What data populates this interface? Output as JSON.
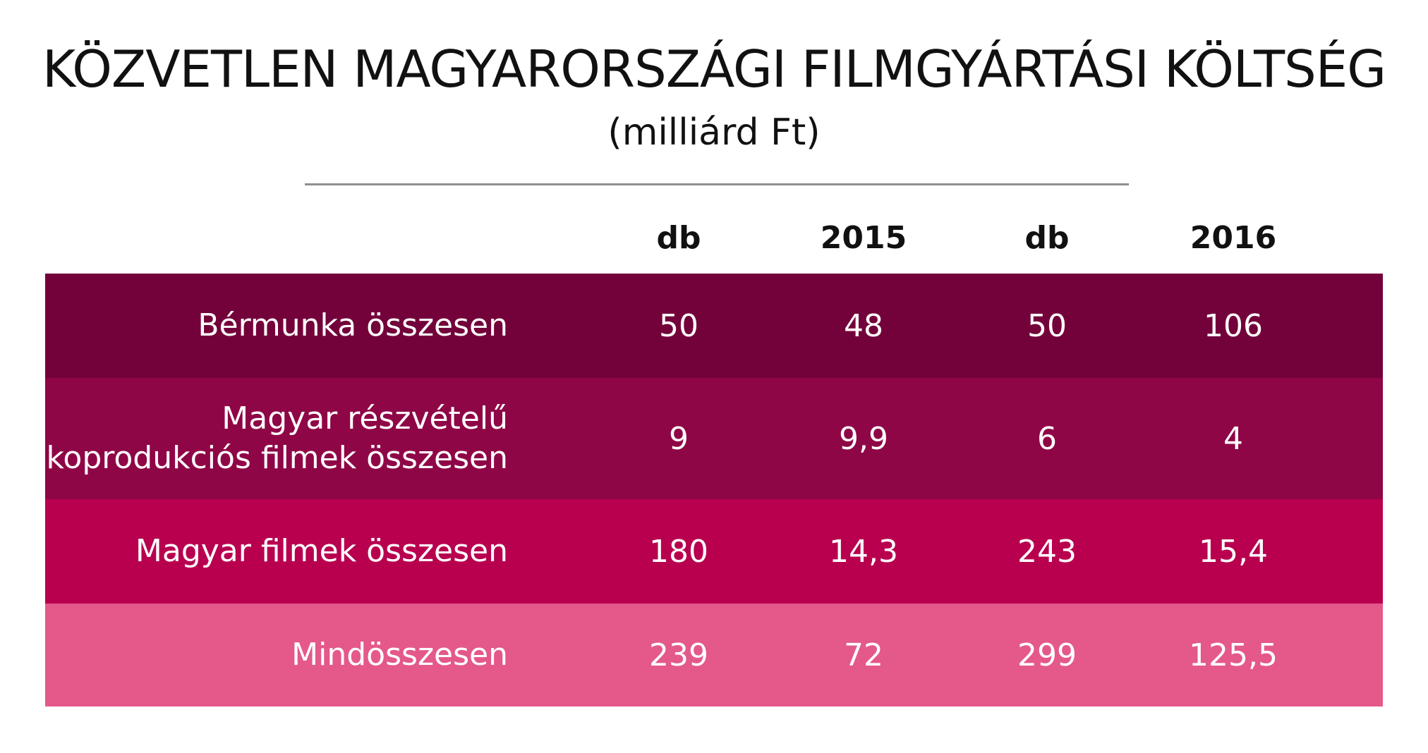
{
  "chart_data": {
    "type": "table",
    "title": "KÖZVETLEN MAGYARORSZÁGI FILMGYÁRTÁSI KÖLTSÉG",
    "subtitle": "(milliárd Ft)",
    "columns": [
      "db",
      "2015",
      "db",
      "2016"
    ],
    "rows": [
      {
        "label": [
          "Bérmunka összesen"
        ],
        "values": [
          "50",
          "48",
          "50",
          "106"
        ],
        "color": "#73023a"
      },
      {
        "label": [
          "Magyar részvételű",
          "koprodukciós filmek összesen"
        ],
        "values": [
          "9",
          "9,9",
          "6",
          "4"
        ],
        "color": "#8f0647"
      },
      {
        "label": [
          "Magyar filmek összesen"
        ],
        "values": [
          "180",
          "14,3",
          "243",
          "15,4"
        ],
        "color": "#b8004f"
      },
      {
        "label": [
          "Mindösszesen"
        ],
        "values": [
          "239",
          "72",
          "299",
          "125,5"
        ],
        "color": "#e4588a"
      }
    ]
  }
}
